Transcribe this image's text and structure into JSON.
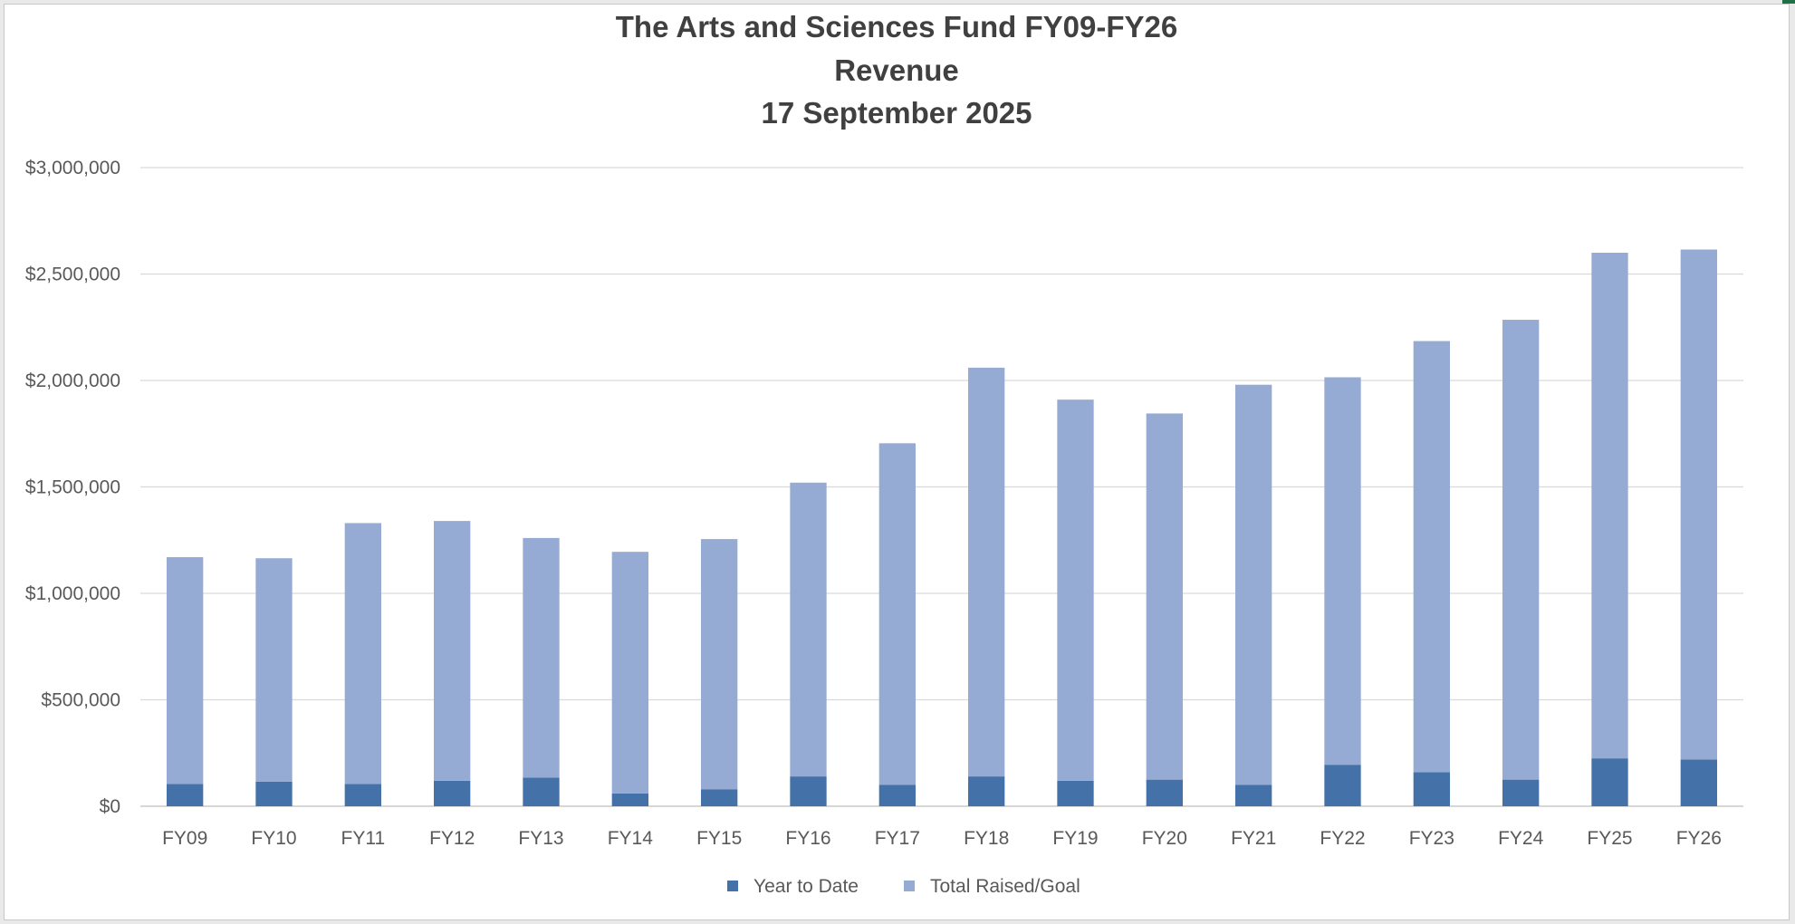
{
  "chart_data": {
    "type": "bar",
    "stacked": true,
    "title_lines": [
      "The Arts and Sciences Fund FY09-FY26",
      "Revenue",
      "17 September 2025"
    ],
    "categories": [
      "FY09",
      "FY10",
      "FY11",
      "FY12",
      "FY13",
      "FY14",
      "FY15",
      "FY16",
      "FY17",
      "FY18",
      "FY19",
      "FY20",
      "FY21",
      "FY22",
      "FY23",
      "FY24",
      "FY25",
      "FY26"
    ],
    "series": [
      {
        "name": "Year to Date",
        "color": "#4472a8",
        "values": [
          105000,
          115000,
          105000,
          120000,
          135000,
          60000,
          80000,
          140000,
          100000,
          140000,
          120000,
          125000,
          100000,
          195000,
          160000,
          125000,
          225000,
          220000
        ]
      },
      {
        "name": "Total Raised/Goal",
        "color": "#96abd3",
        "values": [
          1065000,
          1050000,
          1225000,
          1220000,
          1125000,
          1135000,
          1175000,
          1380000,
          1605000,
          1920000,
          1790000,
          1720000,
          1880000,
          1820000,
          2025000,
          2160000,
          2375000,
          2395000
        ]
      }
    ],
    "ylim": [
      0,
      3000000
    ],
    "yticks": [
      {
        "value": 0,
        "label": "$0"
      },
      {
        "value": 500000,
        "label": "$500,000"
      },
      {
        "value": 1000000,
        "label": "$1,000,000"
      },
      {
        "value": 1500000,
        "label": "$1,500,000"
      },
      {
        "value": 2000000,
        "label": "$2,000,000"
      },
      {
        "value": 2500000,
        "label": "$2,500,000"
      },
      {
        "value": 3000000,
        "label": "$3,000,000"
      }
    ],
    "grid": true,
    "legend_position": "bottom"
  }
}
